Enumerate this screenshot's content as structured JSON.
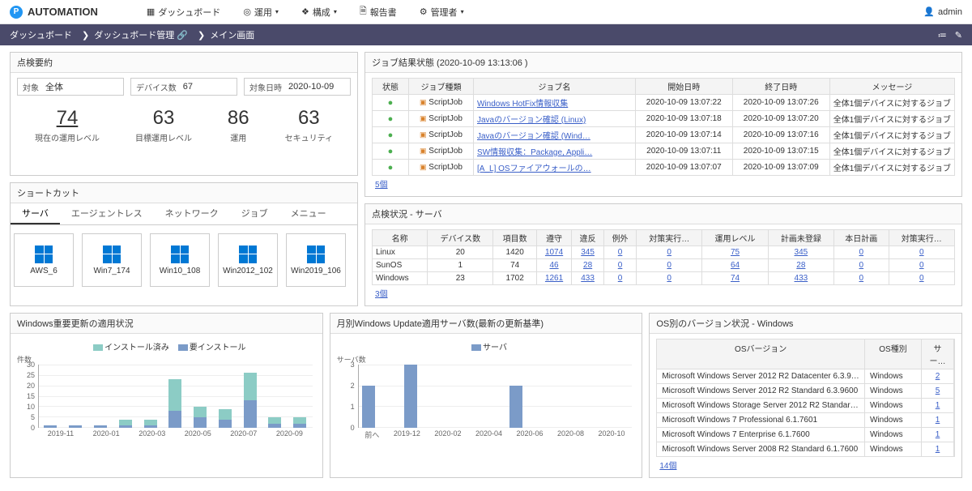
{
  "brand": "AUTOMATION",
  "nav": {
    "dashboard": "ダッシュボード",
    "ops": "運用",
    "config": "構成",
    "report": "報告書",
    "admin": "管理者"
  },
  "user": "admin",
  "breadcrumb": {
    "a": "ダッシュボード",
    "b": "ダッシュボード管理",
    "c": "メイン画面"
  },
  "summary": {
    "title": "点検要約",
    "target_lbl": "対象",
    "target_val": "全体",
    "devices_lbl": "デバイス数",
    "devices_val": "67",
    "date_lbl": "対象日時",
    "date_val": "2020-10-09",
    "metrics": {
      "m1_num": "74",
      "m1_lbl": "現在の運用レベル",
      "m2_num": "63",
      "m2_lbl": "目標運用レベル",
      "m3_num": "86",
      "m3_lbl": "運用",
      "m4_num": "63",
      "m4_lbl": "セキュリティ"
    }
  },
  "shortcuts": {
    "title": "ショートカット",
    "tabs": {
      "t1": "サーバ",
      "t2": "エージェントレス",
      "t3": "ネットワーク",
      "t4": "ジョブ",
      "t5": "メニュー"
    },
    "items": {
      "i1": "AWS_6",
      "i2": "Win7_174",
      "i3": "Win10_108",
      "i4": "Win2012_102",
      "i5": "Win2019_106"
    }
  },
  "jobs": {
    "title": "ジョブ結果状態 (2020-10-09 13:13:06 )",
    "h": {
      "c1": "状態",
      "c2": "ジョブ種類",
      "c3": "ジョブ名",
      "c4": "開始日時",
      "c5": "終了日時",
      "c6": "メッセージ"
    },
    "type_label": "ScriptJob",
    "msg": "全体1個デバイスに対するジョブ",
    "r": {
      "r1": {
        "name": "Windows HotFix情報収集",
        "start": "2020-10-09 13:07:22",
        "end": "2020-10-09 13:07:26"
      },
      "r2": {
        "name": "Javaのバージョン確認 (Linux)",
        "start": "2020-10-09 13:07:18",
        "end": "2020-10-09 13:07:20"
      },
      "r3": {
        "name": "Javaのバージョン確認 (Wind…",
        "start": "2020-10-09 13:07:14",
        "end": "2020-10-09 13:07:16"
      },
      "r4": {
        "name": "SW情報収集：Package, Appli…",
        "start": "2020-10-09 13:07:11",
        "end": "2020-10-09 13:07:15"
      },
      "r5": {
        "name": "[A_L] OSファイアウォールの…",
        "start": "2020-10-09 13:07:07",
        "end": "2020-10-09 13:07:09"
      }
    },
    "footer": "5個"
  },
  "server_status": {
    "title": "点検状況 - サーバ",
    "h": {
      "c1": "名称",
      "c2": "デバイス数",
      "c3": "項目数",
      "c4": "遵守",
      "c5": "違反",
      "c6": "例外",
      "c7": "対策実行…",
      "c8": "運用レベル",
      "c9": "計画未登録",
      "c10": "本日計画",
      "c11": "対策実行…"
    },
    "r": {
      "r1": {
        "c1": "Linux",
        "c2": "20",
        "c3": "1420",
        "c4": "1074",
        "c5": "345",
        "c6": "0",
        "c7": "0",
        "c8": "75",
        "c9": "345",
        "c10": "0",
        "c11": "0"
      },
      "r2": {
        "c1": "SunOS",
        "c2": "1",
        "c3": "74",
        "c4": "46",
        "c5": "28",
        "c6": "0",
        "c7": "0",
        "c8": "64",
        "c9": "28",
        "c10": "0",
        "c11": "0"
      },
      "r3": {
        "c1": "Windows",
        "c2": "23",
        "c3": "1702",
        "c4": "1261",
        "c5": "433",
        "c6": "0",
        "c7": "0",
        "c8": "74",
        "c9": "433",
        "c10": "0",
        "c11": "0"
      }
    },
    "footer": "3個"
  },
  "chart1": {
    "title": "Windows重要更新の適用状況",
    "legend": {
      "a": "インストール済み",
      "b": "要インストール"
    },
    "ylabel": "件数",
    "colors": {
      "installed": "#8cccc5",
      "need": "#7b9bc8"
    },
    "ymax": 30,
    "yticks": [
      0,
      5,
      10,
      15,
      20,
      25,
      30
    ],
    "x": [
      "2019-11",
      "2020-01",
      "2020-03",
      "2020-05",
      "2020-07",
      "2020-09"
    ],
    "series": {
      "installed": [
        0,
        0,
        0,
        3,
        3,
        15,
        5,
        5,
        13,
        3,
        3
      ],
      "need": [
        1,
        1,
        1,
        1,
        1,
        8,
        5,
        4,
        13,
        2,
        2
      ]
    }
  },
  "chart2": {
    "title": "月別Windows Update適用サーバ数(最新の更新基準)",
    "legend": {
      "a": "サーバ"
    },
    "ylabel": "サーバ数",
    "color": "#7b9bc8",
    "ymax": 3,
    "yticks": [
      0,
      1,
      2,
      3
    ],
    "x": [
      "前へ",
      "2019-12",
      "2020-02",
      "2020-04",
      "2020-06",
      "2020-08",
      "2020-10"
    ],
    "values": [
      2,
      0,
      3,
      0,
      0,
      0,
      0,
      2,
      0,
      0,
      0,
      0,
      0
    ]
  },
  "os_versions": {
    "title": "OS別のバージョン状況 - Windows",
    "h": {
      "c1": "OSバージョン",
      "c2": "OS種別",
      "c3": "サー…"
    },
    "r": {
      "r1": {
        "c1": "Microsoft Windows Server 2012 R2 Datacenter 6.3.9600",
        "c2": "Windows",
        "c3": "2"
      },
      "r2": {
        "c1": "Microsoft Windows Server 2012 R2 Standard 6.3.9600",
        "c2": "Windows",
        "c3": "5"
      },
      "r3": {
        "c1": "Microsoft Windows Storage Server 2012 R2 Standard …",
        "c2": "Windows",
        "c3": "1"
      },
      "r4": {
        "c1": "Microsoft Windows 7 Professional 6.1.7601",
        "c2": "Windows",
        "c3": "1"
      },
      "r5": {
        "c1": "Microsoft Windows 7 Enterprise 6.1.7600",
        "c2": "Windows",
        "c3": "1"
      },
      "r6": {
        "c1": "Microsoft Windows Server 2008 R2 Standard 6.1.7600",
        "c2": "Windows",
        "c3": "1"
      }
    },
    "footer": "14個"
  }
}
